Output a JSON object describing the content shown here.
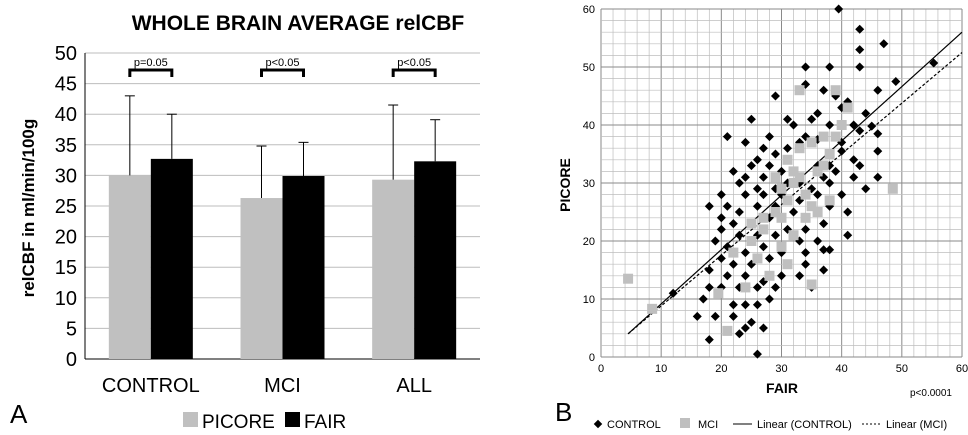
{
  "chart_data": [
    {
      "panel_label": "A",
      "type": "bar",
      "title": "WHOLE BRAIN AVERAGE relCBF",
      "ylabel": "relCBF in ml/min/100g",
      "xlabel": "",
      "ylim": [
        0,
        50
      ],
      "yticks": [
        0,
        5,
        10,
        15,
        20,
        25,
        30,
        35,
        40,
        45,
        50
      ],
      "categories": [
        "CONTROL",
        "MCI",
        "ALL"
      ],
      "series": [
        {
          "name": "PICORE",
          "color": "#c0c0c0",
          "values": [
            30,
            26.3,
            29.3
          ],
          "error": [
            13,
            8.5,
            12.2
          ]
        },
        {
          "name": "FAIR",
          "color": "#000000",
          "values": [
            32.7,
            29.9,
            32.3
          ],
          "error": [
            7.3,
            5.5,
            6.8
          ]
        }
      ],
      "annotations": [
        "p=0.05",
        "p<0.05",
        "p<0.05"
      ],
      "grid": "horizontal",
      "legend_position": "bottom"
    },
    {
      "panel_label": "B",
      "type": "scatter",
      "xlabel": "FAIR",
      "ylabel": "PICORE",
      "xlim": [
        0,
        60
      ],
      "ylim": [
        0,
        60
      ],
      "xticks": [
        0,
        10,
        20,
        30,
        40,
        50,
        60
      ],
      "yticks": [
        0,
        10,
        20,
        30,
        40,
        50,
        60
      ],
      "grid": true,
      "annotation": "p<0.0001",
      "legend_position": "bottom",
      "series": [
        {
          "name": "CONTROL",
          "marker": "diamond",
          "color": "#000000",
          "points": [
            [
              39.5,
              60
            ],
            [
              43,
              56.5
            ],
            [
              47,
              54
            ],
            [
              43,
              53
            ],
            [
              55.3,
              50.7
            ],
            [
              34,
              50
            ],
            [
              38,
              50
            ],
            [
              43,
              50
            ],
            [
              49,
              47.5
            ],
            [
              46,
              46
            ],
            [
              34,
              47
            ],
            [
              37,
              46
            ],
            [
              29,
              45
            ],
            [
              39,
              45
            ],
            [
              40,
              43
            ],
            [
              41,
              44
            ],
            [
              44,
              42
            ],
            [
              25,
              41
            ],
            [
              31,
              41
            ],
            [
              35,
              41
            ],
            [
              42,
              40
            ],
            [
              36,
              42
            ],
            [
              45,
              39.8
            ],
            [
              32,
              40
            ],
            [
              38,
              40
            ],
            [
              43,
              39
            ],
            [
              28,
              38
            ],
            [
              34,
              38
            ],
            [
              36,
              37.5
            ],
            [
              40,
              37
            ],
            [
              46,
              38.5
            ],
            [
              21,
              38
            ],
            [
              24,
              37
            ],
            [
              27,
              36
            ],
            [
              31,
              36
            ],
            [
              33,
              37
            ],
            [
              40,
              35.5
            ],
            [
              46,
              35.5
            ],
            [
              42,
              34
            ],
            [
              26,
              34
            ],
            [
              29,
              35
            ],
            [
              25,
              33
            ],
            [
              28,
              33
            ],
            [
              36,
              33
            ],
            [
              38,
              33
            ],
            [
              43,
              33
            ],
            [
              22,
              32
            ],
            [
              24,
              31
            ],
            [
              27,
              31
            ],
            [
              30,
              32
            ],
            [
              33,
              30
            ],
            [
              39,
              32
            ],
            [
              42,
              31
            ],
            [
              46,
              31
            ],
            [
              23,
              30
            ],
            [
              26,
              29
            ],
            [
              29,
              29
            ],
            [
              31,
              30
            ],
            [
              35,
              29
            ],
            [
              38,
              30
            ],
            [
              37,
              31
            ],
            [
              20,
              28
            ],
            [
              24,
              28
            ],
            [
              27,
              28
            ],
            [
              30,
              28
            ],
            [
              33,
              27
            ],
            [
              36,
              28
            ],
            [
              40,
              28
            ],
            [
              44,
              29
            ],
            [
              18,
              26
            ],
            [
              21,
              26
            ],
            [
              23,
              25
            ],
            [
              26,
              26
            ],
            [
              29,
              26
            ],
            [
              32,
              25
            ],
            [
              35,
              26
            ],
            [
              38,
              26
            ],
            [
              41,
              25
            ],
            [
              20,
              24
            ],
            [
              22,
              23
            ],
            [
              25,
              23
            ],
            [
              28,
              24
            ],
            [
              31,
              22
            ],
            [
              34,
              22
            ],
            [
              37,
              23
            ],
            [
              20,
              22
            ],
            [
              23,
              21
            ],
            [
              26,
              21
            ],
            [
              29,
              21
            ],
            [
              33,
              20
            ],
            [
              36,
              20
            ],
            [
              41,
              21
            ],
            [
              19,
              20
            ],
            [
              21,
              19
            ],
            [
              24,
              18
            ],
            [
              27,
              19
            ],
            [
              30,
              18
            ],
            [
              34,
              18
            ],
            [
              37,
              18.5
            ],
            [
              38,
              18.5
            ],
            [
              20,
              17
            ],
            [
              22,
              16
            ],
            [
              25,
              16
            ],
            [
              28,
              17
            ],
            [
              31,
              16
            ],
            [
              34,
              16
            ],
            [
              18,
              15
            ],
            [
              21,
              14
            ],
            [
              24,
              14
            ],
            [
              27,
              13
            ],
            [
              30,
              14
            ],
            [
              33,
              14
            ],
            [
              37,
              15
            ],
            [
              18,
              12
            ],
            [
              20,
              12
            ],
            [
              23,
              12
            ],
            [
              26,
              12
            ],
            [
              29,
              12
            ],
            [
              35,
              12
            ],
            [
              17,
              10
            ],
            [
              22,
              9
            ],
            [
              24,
              9
            ],
            [
              26,
              9
            ],
            [
              28,
              10
            ],
            [
              12,
              11
            ],
            [
              16,
              7
            ],
            [
              19,
              7
            ],
            [
              22,
              7
            ],
            [
              25,
              6
            ],
            [
              27,
              5
            ],
            [
              24,
              5
            ],
            [
              18,
              3
            ],
            [
              26,
              0.5
            ],
            [
              23,
              4
            ]
          ]
        },
        {
          "name": "MCI",
          "marker": "square",
          "color": "#bfbfbf",
          "points": [
            [
              4.5,
              13.5
            ],
            [
              8.5,
              8.3
            ],
            [
              21,
              4.5
            ],
            [
              19.5,
              11
            ],
            [
              24,
              12
            ],
            [
              22,
              18
            ],
            [
              25,
              20
            ],
            [
              27,
              22
            ],
            [
              29,
              25
            ],
            [
              30,
              24
            ],
            [
              31,
              27
            ],
            [
              32,
              30
            ],
            [
              33,
              31
            ],
            [
              34,
              28
            ],
            [
              35,
              26
            ],
            [
              36,
              32
            ],
            [
              37,
              33
            ],
            [
              38,
              35
            ],
            [
              39,
              38
            ],
            [
              40,
              40
            ],
            [
              41,
              43
            ],
            [
              39,
              46
            ],
            [
              33,
              46
            ],
            [
              35,
              12.5
            ],
            [
              28,
              14
            ],
            [
              26,
              17
            ],
            [
              30,
              19
            ],
            [
              32,
              21
            ],
            [
              34,
              24
            ],
            [
              36,
              25
            ],
            [
              38,
              27
            ],
            [
              31,
              34
            ],
            [
              33,
              36
            ],
            [
              35,
              37
            ],
            [
              37,
              38
            ],
            [
              29,
              31
            ],
            [
              27,
              24
            ],
            [
              25,
              23
            ],
            [
              48.5,
              29
            ],
            [
              31,
              16
            ],
            [
              30,
              29
            ],
            [
              32,
              32
            ]
          ]
        }
      ],
      "trendlines": [
        {
          "name": "Linear (CONTROL)",
          "style": "solid",
          "x": [
            4.5,
            60
          ],
          "y": [
            4,
            56
          ]
        },
        {
          "name": "Linear (MCI)",
          "style": "dashed",
          "x": [
            4.5,
            60
          ],
          "y": [
            4,
            52.5
          ]
        }
      ]
    }
  ]
}
